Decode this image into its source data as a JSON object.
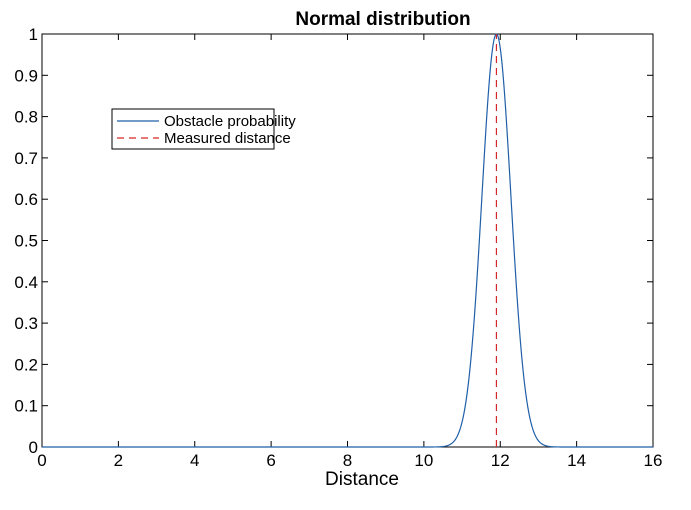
{
  "chart_data": {
    "type": "line",
    "title": "Normal distribution",
    "xlabel": "Distance",
    "ylabel": "",
    "xlim": [
      0,
      16
    ],
    "ylim": [
      0,
      1
    ],
    "xticks": [
      0,
      2,
      4,
      6,
      8,
      10,
      12,
      14,
      16
    ],
    "yticks": [
      0,
      0.1,
      0.2,
      0.3,
      0.4,
      0.5,
      0.6,
      0.7,
      0.8,
      0.9,
      1
    ],
    "ytick_labels": [
      "0",
      "0.1",
      "0.2",
      "0.3",
      "0.4",
      "0.5",
      "0.6",
      "0.7",
      "0.8",
      "0.9",
      "1"
    ],
    "grid": false,
    "legend_position": "upper-left",
    "series": [
      {
        "name": "Obstacle probability",
        "style": "solid",
        "color": "#1f5fa8",
        "distribution": "normal",
        "mean": 11.9,
        "sigma": 0.38,
        "peak": 1.0
      },
      {
        "name": "Measured distance",
        "style": "dashed",
        "color": "#d62728",
        "x": [
          11.9,
          11.9
        ],
        "y": [
          0,
          1
        ]
      }
    ]
  }
}
